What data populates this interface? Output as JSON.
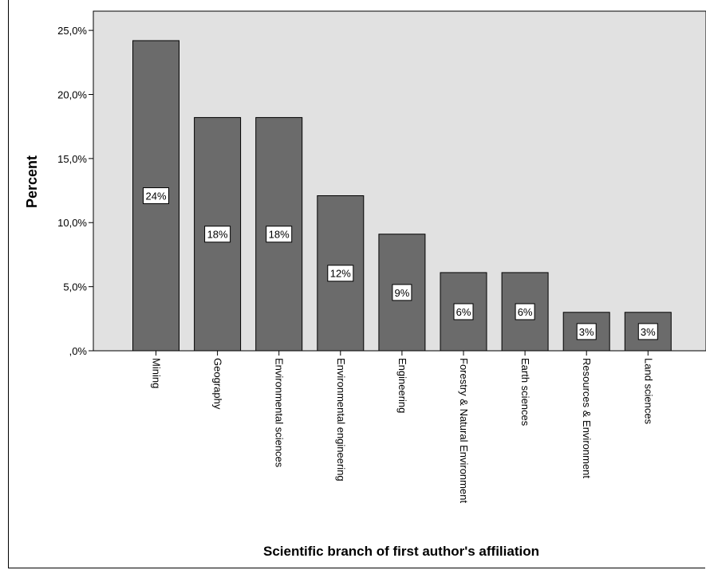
{
  "chart_data": {
    "type": "bar",
    "title": "",
    "xlabel": "Scientific branch of first author's affiliation",
    "ylabel": "Percent",
    "categories": [
      "Mining",
      "Geography",
      "Environmental sciences",
      "Environmental engineering",
      "Engineering",
      "Forestry & Natural Environment",
      "Earth sciences",
      "Resources & Environment",
      "Land sciences"
    ],
    "values": [
      24.2,
      18.2,
      18.2,
      12.1,
      9.1,
      6.1,
      6.1,
      3.0,
      3.0
    ],
    "data_labels": [
      "24%",
      "18%",
      "18%",
      "12%",
      "9%",
      "6%",
      "6%",
      "3%",
      "3%"
    ],
    "ylim": [
      0,
      26.5
    ],
    "yticks": [
      0,
      5,
      10,
      15,
      20,
      25
    ],
    "ytick_labels": [
      ",0%",
      "5,0%",
      "10,0%",
      "15,0%",
      "20,0%",
      "25,0%"
    ],
    "grid": false,
    "legend": "none",
    "colors": {
      "bar": "#6b6b6b",
      "plot_background": "#e1e1e1",
      "label_box": "#ffffff"
    }
  }
}
